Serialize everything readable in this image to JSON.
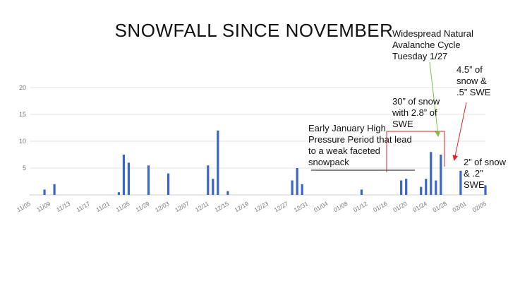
{
  "page": {
    "title": "SNOWFALL SINCE NOVEMBER"
  },
  "annotations": {
    "early_january": "Early January High Pressure Period that lead to a weak faceted snowpack",
    "avalanche_cycle": "Widespread Natural Avalanche Cycle Tuesday 1/27",
    "snow_30in": "30” of snow with 2.8” of SWE",
    "snow_45in": "4.5” of snow & .5” SWE",
    "snow_2in": "2” of snow & .2” SWE"
  },
  "colors": {
    "bar": "#3a66c9",
    "grid": "#e3e3e3",
    "axis_text": "#777777",
    "avalanche_arrow": "#7ac142",
    "snow_arrow": "#d9262c",
    "bracket": "#d9262c",
    "early_line": "#111111"
  },
  "chart_data": {
    "type": "bar",
    "title": "",
    "xlabel": "",
    "ylabel": "",
    "x_start": "11/05",
    "x_end": "02/05",
    "ylim": [
      0,
      20
    ],
    "yticks": [
      20,
      15,
      10,
      5
    ],
    "xticks": [
      "11/05",
      "11/09",
      "11/13",
      "11/17",
      "11/21",
      "11/25",
      "11/29",
      "12/03",
      "12/07",
      "12/11",
      "12/15",
      "12/19",
      "12/23",
      "12/27",
      "12/31",
      "01/04",
      "01/08",
      "01/12",
      "01/16",
      "01/20",
      "01/24",
      "01/28",
      "02/01",
      "02/05"
    ],
    "grid": true,
    "series": [
      {
        "values": [
          {
            "date": "11/08",
            "value": 1
          },
          {
            "date": "11/10",
            "value": 2
          },
          {
            "date": "11/23",
            "value": 0.5
          },
          {
            "date": "11/24",
            "value": 7.5
          },
          {
            "date": "11/25",
            "value": 6
          },
          {
            "date": "11/29",
            "value": 5.5
          },
          {
            "date": "12/03",
            "value": 4
          },
          {
            "date": "12/11",
            "value": 5.5
          },
          {
            "date": "12/12",
            "value": 3
          },
          {
            "date": "12/13",
            "value": 12
          },
          {
            "date": "12/15",
            "value": 0.7
          },
          {
            "date": "12/28",
            "value": 2.7
          },
          {
            "date": "12/29",
            "value": 5
          },
          {
            "date": "12/30",
            "value": 2
          },
          {
            "date": "01/11",
            "value": 1
          },
          {
            "date": "01/19",
            "value": 2.7
          },
          {
            "date": "01/20",
            "value": 3
          },
          {
            "date": "01/23",
            "value": 1.5
          },
          {
            "date": "01/24",
            "value": 3
          },
          {
            "date": "01/25",
            "value": 8
          },
          {
            "date": "01/26",
            "value": 2.7
          },
          {
            "date": "01/27",
            "value": 7.5
          },
          {
            "date": "01/31",
            "value": 4.5
          },
          {
            "date": "02/05",
            "value": 1.8
          }
        ]
      }
    ]
  }
}
